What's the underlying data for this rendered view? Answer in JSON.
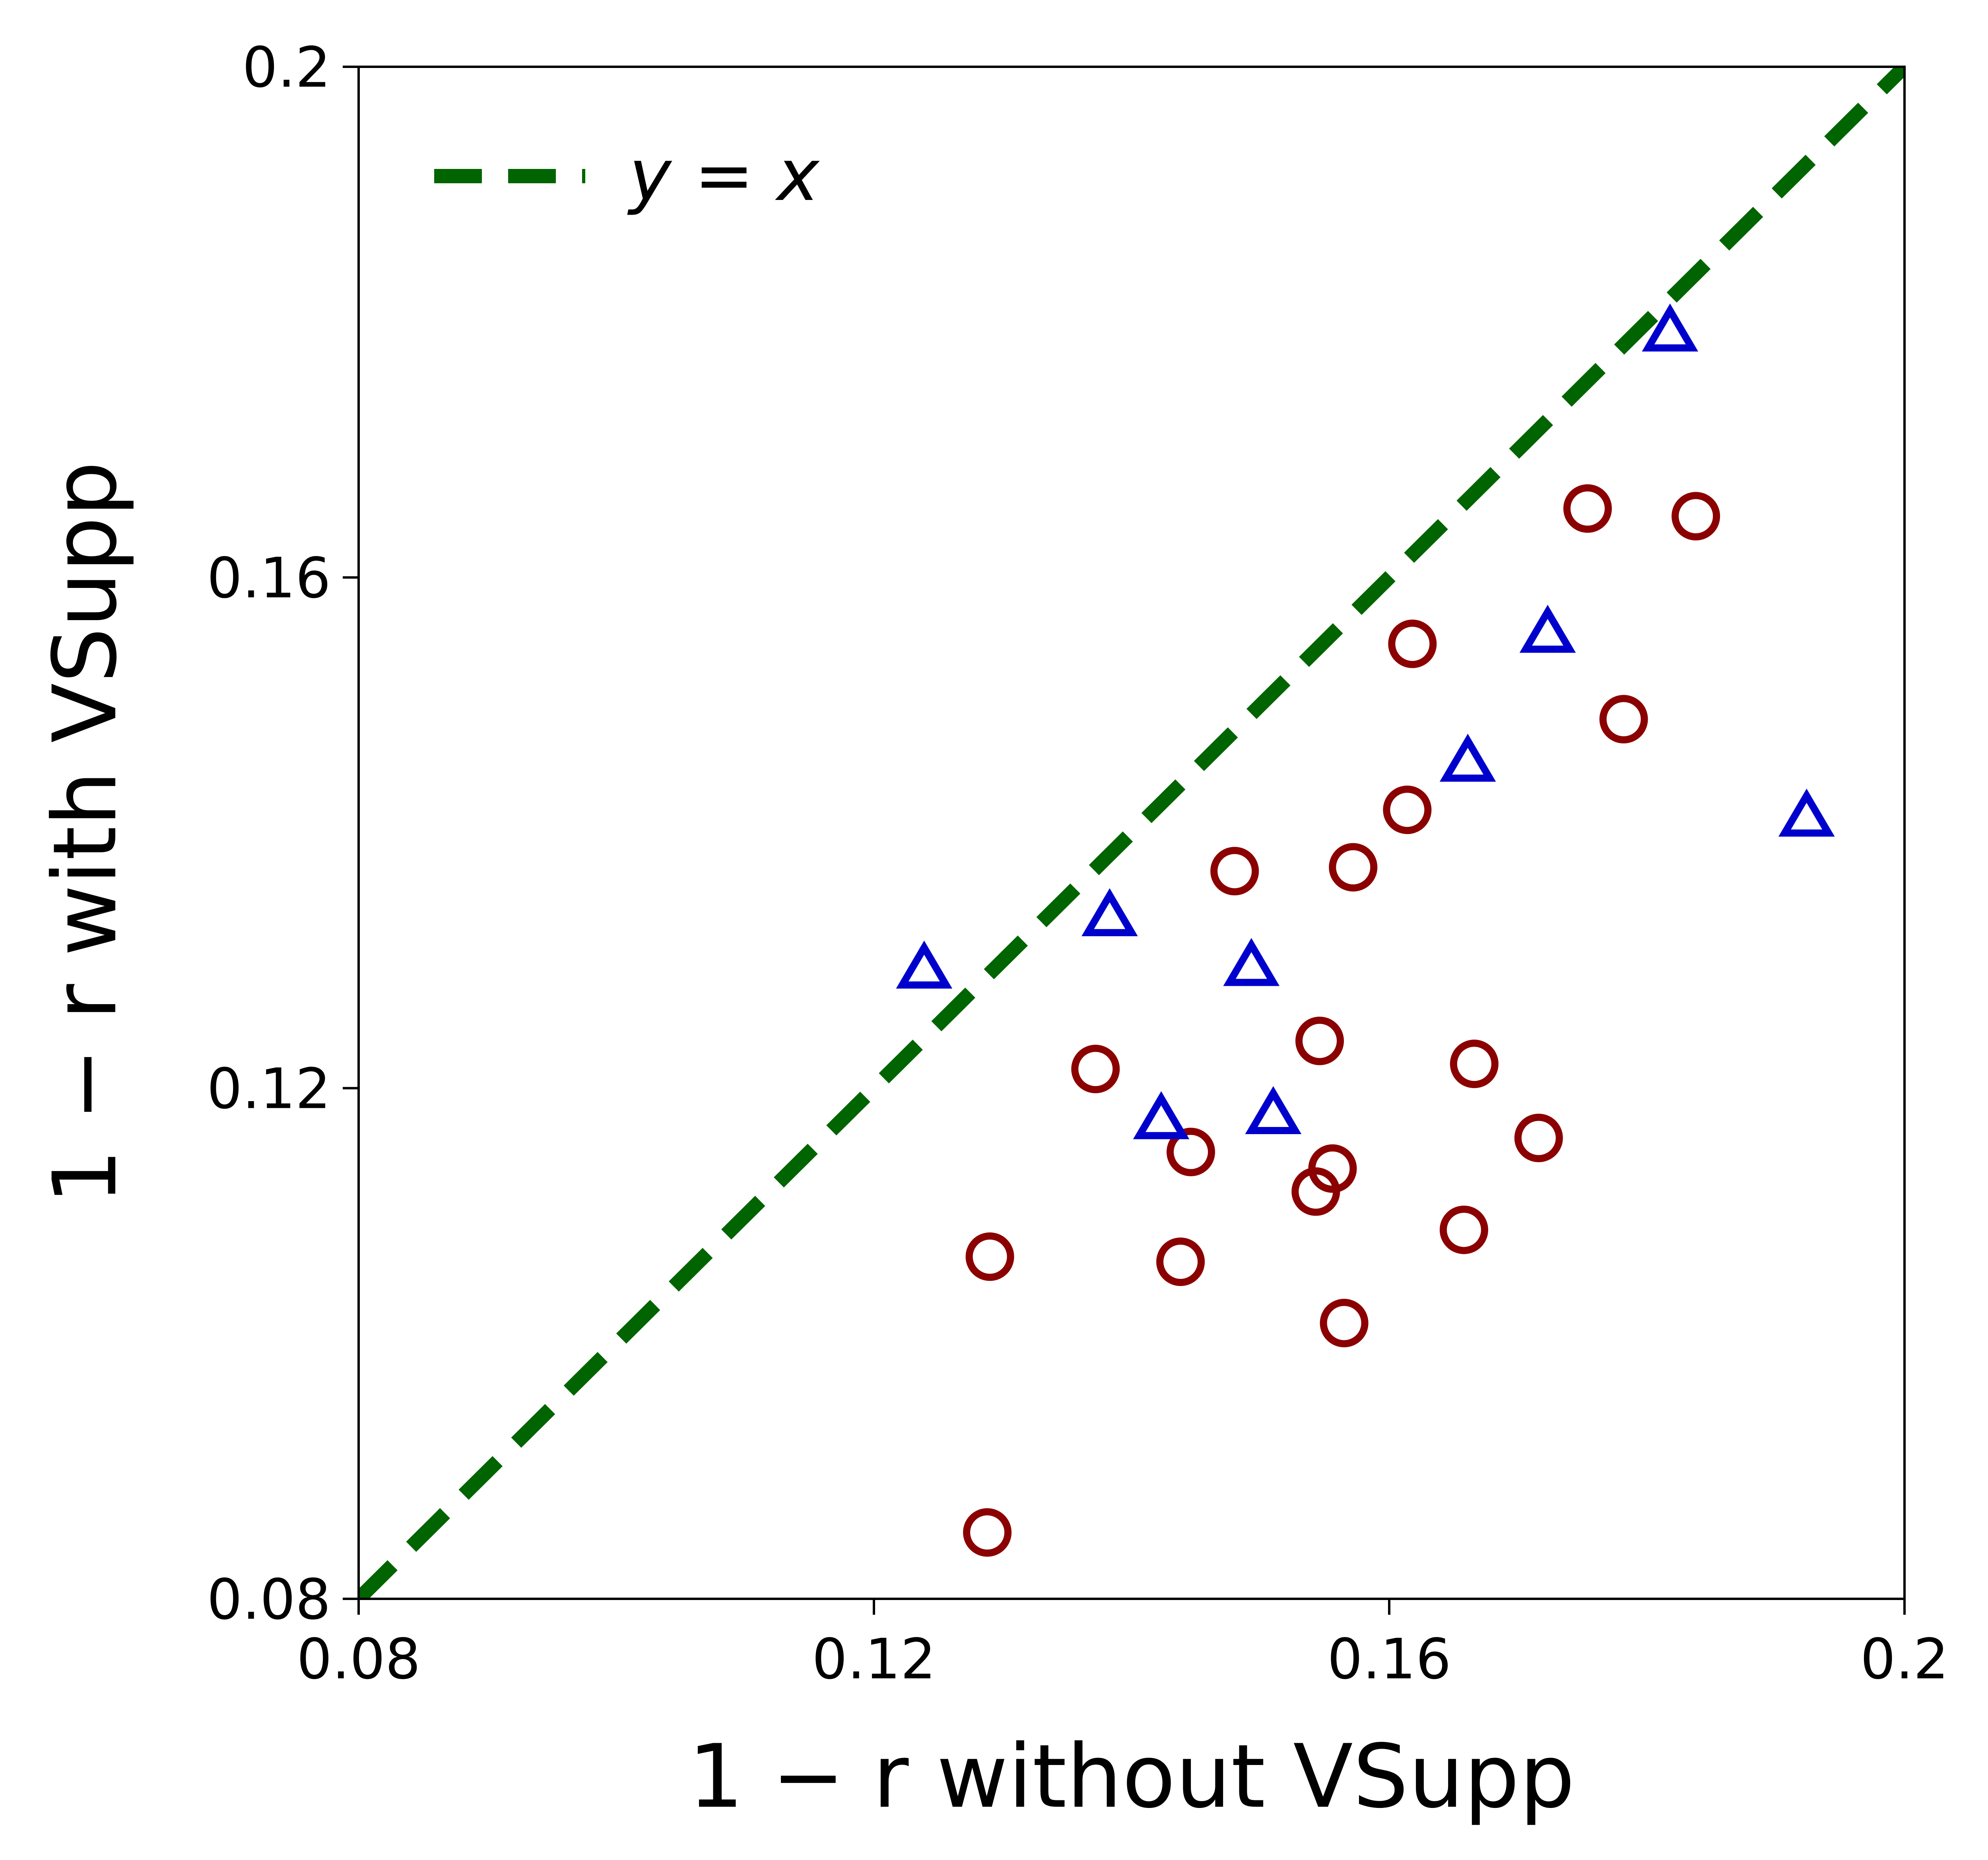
{
  "chart_data": {
    "type": "scatter",
    "title": "",
    "xlabel": "1 − r without VSupp",
    "ylabel": "1 − r with VSupp",
    "xlim": [
      0.08,
      0.2
    ],
    "ylim": [
      0.08,
      0.2
    ],
    "x_ticks": [
      "0.08",
      "0.12",
      "0.16",
      "0.2"
    ],
    "y_ticks": [
      "0.08",
      "0.12",
      "0.16",
      "0.2"
    ],
    "grid": false,
    "legend": {
      "placement": "top-left",
      "entries": [
        "y = x"
      ]
    },
    "reference_line": {
      "label": "y = x",
      "style": "dashed",
      "color": "#006400",
      "from": [
        0.08,
        0.08
      ],
      "to": [
        0.2,
        0.2
      ]
    },
    "series": [
      {
        "marker": "circle",
        "color": "#8b0000",
        "points": [
          {
            "x": 0.129,
            "y": 0.1068
          },
          {
            "x": 0.1288,
            "y": 0.0852
          },
          {
            "x": 0.1372,
            "y": 0.1215
          },
          {
            "x": 0.1438,
            "y": 0.1064
          },
          {
            "x": 0.1446,
            "y": 0.115
          },
          {
            "x": 0.148,
            "y": 0.137
          },
          {
            "x": 0.1543,
            "y": 0.1119
          },
          {
            "x": 0.1546,
            "y": 0.1237
          },
          {
            "x": 0.1556,
            "y": 0.1137
          },
          {
            "x": 0.1565,
            "y": 0.1016
          },
          {
            "x": 0.1572,
            "y": 0.1373
          },
          {
            "x": 0.1614,
            "y": 0.1418
          },
          {
            "x": 0.1618,
            "y": 0.1548
          },
          {
            "x": 0.1658,
            "y": 0.1089
          },
          {
            "x": 0.1666,
            "y": 0.1219
          },
          {
            "x": 0.1716,
            "y": 0.1161
          },
          {
            "x": 0.1754,
            "y": 0.1654
          },
          {
            "x": 0.1782,
            "y": 0.1489
          },
          {
            "x": 0.1838,
            "y": 0.1648
          }
        ]
      },
      {
        "marker": "triangle",
        "color": "#0000cd",
        "points": [
          {
            "x": 0.1239,
            "y": 0.1292
          },
          {
            "x": 0.1383,
            "y": 0.1333
          },
          {
            "x": 0.1423,
            "y": 0.1174
          },
          {
            "x": 0.1493,
            "y": 0.1294
          },
          {
            "x": 0.151,
            "y": 0.1178
          },
          {
            "x": 0.1661,
            "y": 0.1454
          },
          {
            "x": 0.1723,
            "y": 0.1555
          },
          {
            "x": 0.1818,
            "y": 0.1791
          },
          {
            "x": 0.1924,
            "y": 0.1411
          }
        ]
      }
    ]
  }
}
